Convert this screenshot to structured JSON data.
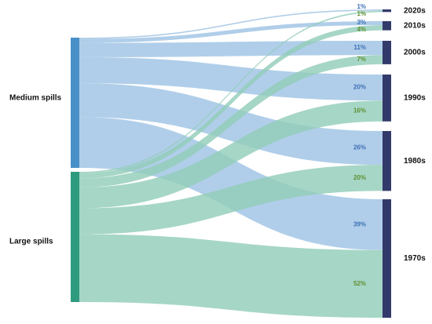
{
  "sources": [
    {
      "key": "medium",
      "label": "Medium spills",
      "color": "#4a90c8",
      "flow_color": "#9fc3e4"
    },
    {
      "key": "large",
      "label": "Large spills",
      "color": "#2f9b7e",
      "flow_color": "#92cdb9"
    }
  ],
  "decades": [
    {
      "key": "2020s",
      "label": "2020s"
    },
    {
      "key": "2010s",
      "label": "2010s"
    },
    {
      "key": "2000s",
      "label": "2000s"
    },
    {
      "key": "1990s",
      "label": "1990s"
    },
    {
      "key": "1980s",
      "label": "1980s"
    },
    {
      "key": "1970s",
      "label": "1970s"
    }
  ],
  "flows": [
    {
      "source": "medium",
      "target": "2020s",
      "percent": 1,
      "label": "1%"
    },
    {
      "source": "large",
      "target": "2020s",
      "percent": 1,
      "label": "1%"
    },
    {
      "source": "medium",
      "target": "2010s",
      "percent": 3,
      "label": "3%"
    },
    {
      "source": "large",
      "target": "2010s",
      "percent": 4,
      "label": "4%"
    },
    {
      "source": "medium",
      "target": "2000s",
      "percent": 11,
      "label": "11%"
    },
    {
      "source": "large",
      "target": "2000s",
      "percent": 7,
      "label": "7%"
    },
    {
      "source": "medium",
      "target": "1990s",
      "percent": 20,
      "label": "20%"
    },
    {
      "source": "large",
      "target": "1990s",
      "percent": 16,
      "label": "16%"
    },
    {
      "source": "medium",
      "target": "1980s",
      "percent": 26,
      "label": "26%"
    },
    {
      "source": "large",
      "target": "1980s",
      "percent": 20,
      "label": "20%"
    },
    {
      "source": "medium",
      "target": "1970s",
      "percent": 39,
      "label": "39%"
    },
    {
      "source": "large",
      "target": "1970s",
      "percent": 52,
      "label": "52%"
    }
  ],
  "colors": {
    "decade_bar": "#323a6b",
    "medium_text": "#3d6fb6",
    "large_text": "#5f8f2f",
    "label_text": "#111111"
  }
}
